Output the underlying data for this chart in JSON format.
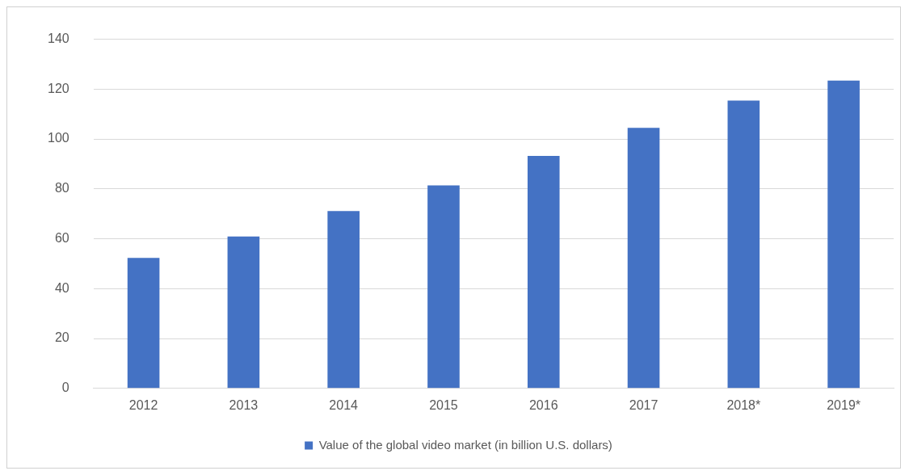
{
  "chart_data": {
    "type": "bar",
    "categories": [
      "2012",
      "2013",
      "2014",
      "2015",
      "2016",
      "2017",
      "2018*",
      "2019*"
    ],
    "series": [
      {
        "name": "Value of the global video market (in billion U.S. dollars)",
        "color": "#4472c4",
        "values": [
          52.3,
          60.9,
          71.1,
          81.4,
          93.2,
          104.5,
          115.4,
          123.4
        ]
      }
    ],
    "ylim": [
      0,
      140
    ],
    "yticks": [
      0,
      20,
      40,
      60,
      80,
      100,
      120,
      140
    ],
    "grid": "y",
    "legend": "bottom"
  }
}
